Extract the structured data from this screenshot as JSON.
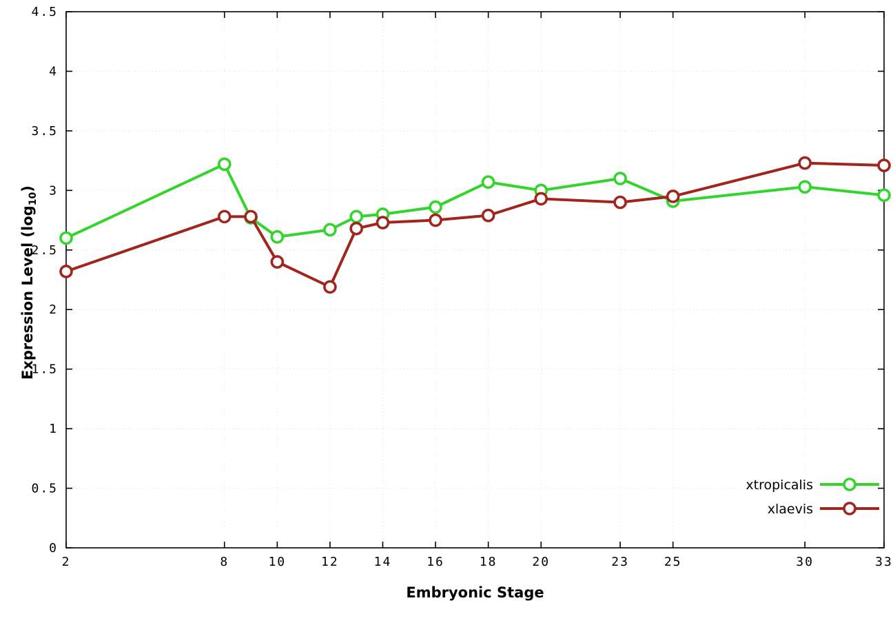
{
  "chart_data": {
    "type": "line",
    "title": "",
    "xlabel": "Embryonic Stage",
    "ylabel": "Expression Level (log10)",
    "ylabel_parts": {
      "main": "Expression Level (log",
      "sub": "10",
      "close": ")"
    },
    "xlim": [
      2,
      33
    ],
    "ylim": [
      0,
      4.5
    ],
    "grid": true,
    "legend_position": "bottom-right",
    "xticks": [
      2,
      8,
      10,
      12,
      14,
      16,
      18,
      20,
      23,
      25,
      30,
      33
    ],
    "xtick_labels": [
      "2",
      "8",
      "10",
      "12",
      "14",
      "16",
      "18",
      "20",
      "23",
      "25",
      "30",
      "33"
    ],
    "yticks": [
      0,
      0.5,
      1,
      1.5,
      2,
      2.5,
      3,
      3.5,
      4,
      4.5
    ],
    "ytick_labels": [
      "0",
      "0.5",
      "1",
      "1.5",
      "2",
      "2.5",
      "3",
      "3.5",
      "4",
      "4.5"
    ],
    "x": [
      2,
      8,
      9,
      10,
      12,
      13,
      14,
      16,
      18,
      20,
      23,
      25,
      30,
      33
    ],
    "series": [
      {
        "name": "xtropicalis",
        "color": "#33d42b",
        "values": [
          2.6,
          3.22,
          2.77,
          2.61,
          2.67,
          2.78,
          2.8,
          2.86,
          3.07,
          3.0,
          3.1,
          2.91,
          3.03,
          2.96
        ]
      },
      {
        "name": "xlaevis",
        "color": "#a0251d",
        "values": [
          2.32,
          2.78,
          2.78,
          2.4,
          2.19,
          2.68,
          2.73,
          2.75,
          2.79,
          2.93,
          2.9,
          2.95,
          3.23,
          3.21
        ]
      }
    ]
  }
}
